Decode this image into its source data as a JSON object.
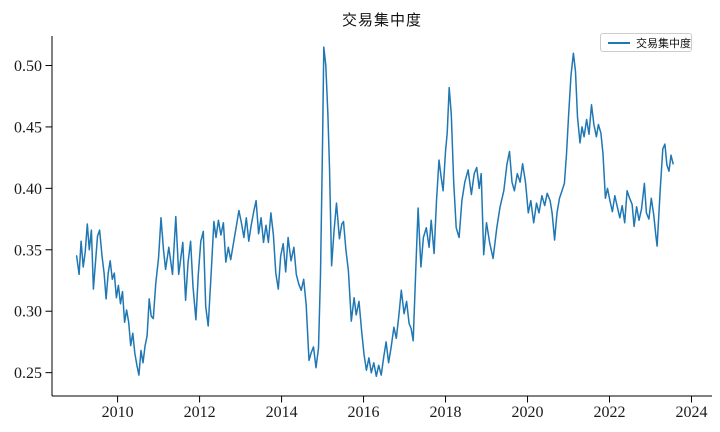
{
  "figure": {
    "title": "交易集中度",
    "background": "#ffffff",
    "text_color": "#1a1a1a",
    "axis_color": "#000000"
  },
  "legend": {
    "label": "交易集中度",
    "line_color": "#1f77b4",
    "position": "upper-right"
  },
  "chart_data": {
    "type": "line",
    "title": "交易集中度",
    "xlabel": "",
    "ylabel": "",
    "grid": false,
    "legend_position": "upper-right",
    "xlim": [
      2008.4,
      2024.5
    ],
    "ylim": [
      0.231,
      0.524
    ],
    "xticks": [
      2010,
      2012,
      2014,
      2016,
      2018,
      2020,
      2022,
      2024
    ],
    "yticks": [
      0.25,
      0.3,
      0.35,
      0.4,
      0.45,
      0.5
    ],
    "series": [
      {
        "name": "交易集中度",
        "color": "#1f77b4",
        "points": [
          [
            2009.0,
            0.345
          ],
          [
            2009.06,
            0.33
          ],
          [
            2009.11,
            0.357
          ],
          [
            2009.16,
            0.336
          ],
          [
            2009.21,
            0.348
          ],
          [
            2009.26,
            0.371
          ],
          [
            2009.31,
            0.35
          ],
          [
            2009.36,
            0.366
          ],
          [
            2009.41,
            0.318
          ],
          [
            2009.46,
            0.34
          ],
          [
            2009.51,
            0.361
          ],
          [
            2009.56,
            0.366
          ],
          [
            2009.62,
            0.345
          ],
          [
            2009.67,
            0.331
          ],
          [
            2009.72,
            0.31
          ],
          [
            2009.77,
            0.331
          ],
          [
            2009.82,
            0.341
          ],
          [
            2009.87,
            0.326
          ],
          [
            2009.92,
            0.331
          ],
          [
            2009.97,
            0.311
          ],
          [
            2010.02,
            0.321
          ],
          [
            2010.07,
            0.306
          ],
          [
            2010.12,
            0.316
          ],
          [
            2010.17,
            0.291
          ],
          [
            2010.22,
            0.301
          ],
          [
            2010.27,
            0.291
          ],
          [
            2010.32,
            0.272
          ],
          [
            2010.37,
            0.282
          ],
          [
            2010.42,
            0.266
          ],
          [
            2010.47,
            0.256
          ],
          [
            2010.52,
            0.248
          ],
          [
            2010.57,
            0.268
          ],
          [
            2010.62,
            0.258
          ],
          [
            2010.67,
            0.272
          ],
          [
            2010.72,
            0.28
          ],
          [
            2010.77,
            0.31
          ],
          [
            2010.82,
            0.296
          ],
          [
            2010.87,
            0.294
          ],
          [
            2010.93,
            0.322
          ],
          [
            2011.0,
            0.344
          ],
          [
            2011.06,
            0.376
          ],
          [
            2011.12,
            0.35
          ],
          [
            2011.17,
            0.334
          ],
          [
            2011.25,
            0.352
          ],
          [
            2011.34,
            0.33
          ],
          [
            2011.42,
            0.377
          ],
          [
            2011.49,
            0.33
          ],
          [
            2011.59,
            0.356
          ],
          [
            2011.66,
            0.309
          ],
          [
            2011.72,
            0.34
          ],
          [
            2011.78,
            0.357
          ],
          [
            2011.84,
            0.32
          ],
          [
            2011.91,
            0.293
          ],
          [
            2011.97,
            0.33
          ],
          [
            2012.03,
            0.357
          ],
          [
            2012.09,
            0.365
          ],
          [
            2012.15,
            0.304
          ],
          [
            2012.21,
            0.288
          ],
          [
            2012.28,
            0.33
          ],
          [
            2012.35,
            0.373
          ],
          [
            2012.4,
            0.36
          ],
          [
            2012.46,
            0.374
          ],
          [
            2012.52,
            0.362
          ],
          [
            2012.58,
            0.372
          ],
          [
            2012.64,
            0.34
          ],
          [
            2012.7,
            0.352
          ],
          [
            2012.76,
            0.342
          ],
          [
            2012.83,
            0.356
          ],
          [
            2012.9,
            0.37
          ],
          [
            2012.96,
            0.382
          ],
          [
            2013.02,
            0.372
          ],
          [
            2013.08,
            0.36
          ],
          [
            2013.14,
            0.376
          ],
          [
            2013.2,
            0.357
          ],
          [
            2013.26,
            0.37
          ],
          [
            2013.32,
            0.381
          ],
          [
            2013.38,
            0.39
          ],
          [
            2013.44,
            0.363
          ],
          [
            2013.5,
            0.376
          ],
          [
            2013.56,
            0.356
          ],
          [
            2013.62,
            0.37
          ],
          [
            2013.68,
            0.356
          ],
          [
            2013.74,
            0.38
          ],
          [
            2013.8,
            0.362
          ],
          [
            2013.86,
            0.331
          ],
          [
            2013.92,
            0.318
          ],
          [
            2013.98,
            0.345
          ],
          [
            2014.04,
            0.355
          ],
          [
            2014.1,
            0.332
          ],
          [
            2014.16,
            0.36
          ],
          [
            2014.23,
            0.341
          ],
          [
            2014.3,
            0.352
          ],
          [
            2014.36,
            0.33
          ],
          [
            2014.42,
            0.322
          ],
          [
            2014.48,
            0.317
          ],
          [
            2014.54,
            0.326
          ],
          [
            2014.6,
            0.305
          ],
          [
            2014.67,
            0.26
          ],
          [
            2014.72,
            0.266
          ],
          [
            2014.78,
            0.271
          ],
          [
            2014.84,
            0.254
          ],
          [
            2014.9,
            0.27
          ],
          [
            2014.95,
            0.33
          ],
          [
            2015.0,
            0.44
          ],
          [
            2015.03,
            0.515
          ],
          [
            2015.08,
            0.5
          ],
          [
            2015.13,
            0.46
          ],
          [
            2015.17,
            0.417
          ],
          [
            2015.22,
            0.337
          ],
          [
            2015.28,
            0.365
          ],
          [
            2015.34,
            0.388
          ],
          [
            2015.41,
            0.359
          ],
          [
            2015.47,
            0.371
          ],
          [
            2015.51,
            0.373
          ],
          [
            2015.57,
            0.35
          ],
          [
            2015.63,
            0.333
          ],
          [
            2015.7,
            0.292
          ],
          [
            2015.77,
            0.311
          ],
          [
            2015.82,
            0.297
          ],
          [
            2015.89,
            0.308
          ],
          [
            2015.95,
            0.285
          ],
          [
            2016.01,
            0.265
          ],
          [
            2016.07,
            0.252
          ],
          [
            2016.13,
            0.262
          ],
          [
            2016.19,
            0.25
          ],
          [
            2016.25,
            0.258
          ],
          [
            2016.31,
            0.247
          ],
          [
            2016.37,
            0.256
          ],
          [
            2016.43,
            0.248
          ],
          [
            2016.49,
            0.262
          ],
          [
            2016.55,
            0.275
          ],
          [
            2016.61,
            0.258
          ],
          [
            2016.67,
            0.27
          ],
          [
            2016.74,
            0.287
          ],
          [
            2016.8,
            0.278
          ],
          [
            2016.86,
            0.296
          ],
          [
            2016.92,
            0.317
          ],
          [
            2016.99,
            0.298
          ],
          [
            2017.05,
            0.308
          ],
          [
            2017.11,
            0.29
          ],
          [
            2017.16,
            0.286
          ],
          [
            2017.21,
            0.276
          ],
          [
            2017.27,
            0.33
          ],
          [
            2017.33,
            0.384
          ],
          [
            2017.4,
            0.336
          ],
          [
            2017.46,
            0.36
          ],
          [
            2017.53,
            0.368
          ],
          [
            2017.6,
            0.352
          ],
          [
            2017.65,
            0.374
          ],
          [
            2017.72,
            0.347
          ],
          [
            2017.78,
            0.39
          ],
          [
            2017.84,
            0.423
          ],
          [
            2017.89,
            0.41
          ],
          [
            2017.94,
            0.398
          ],
          [
            2018.0,
            0.43
          ],
          [
            2018.04,
            0.445
          ],
          [
            2018.09,
            0.482
          ],
          [
            2018.14,
            0.46
          ],
          [
            2018.2,
            0.405
          ],
          [
            2018.26,
            0.368
          ],
          [
            2018.33,
            0.36
          ],
          [
            2018.4,
            0.39
          ],
          [
            2018.47,
            0.405
          ],
          [
            2018.55,
            0.415
          ],
          [
            2018.63,
            0.395
          ],
          [
            2018.7,
            0.412
          ],
          [
            2018.76,
            0.417
          ],
          [
            2018.82,
            0.4
          ],
          [
            2018.87,
            0.412
          ],
          [
            2018.93,
            0.346
          ],
          [
            2019.0,
            0.372
          ],
          [
            2019.08,
            0.355
          ],
          [
            2019.16,
            0.343
          ],
          [
            2019.25,
            0.368
          ],
          [
            2019.33,
            0.385
          ],
          [
            2019.42,
            0.398
          ],
          [
            2019.5,
            0.42
          ],
          [
            2019.56,
            0.43
          ],
          [
            2019.62,
            0.405
          ],
          [
            2019.68,
            0.398
          ],
          [
            2019.75,
            0.412
          ],
          [
            2019.82,
            0.405
          ],
          [
            2019.88,
            0.42
          ],
          [
            2019.95,
            0.405
          ],
          [
            2020.02,
            0.38
          ],
          [
            2020.08,
            0.39
          ],
          [
            2020.15,
            0.372
          ],
          [
            2020.22,
            0.388
          ],
          [
            2020.28,
            0.38
          ],
          [
            2020.35,
            0.394
          ],
          [
            2020.42,
            0.386
          ],
          [
            2020.48,
            0.396
          ],
          [
            2020.55,
            0.39
          ],
          [
            2020.6,
            0.38
          ],
          [
            2020.66,
            0.358
          ],
          [
            2020.72,
            0.38
          ],
          [
            2020.78,
            0.392
          ],
          [
            2020.84,
            0.398
          ],
          [
            2020.9,
            0.404
          ],
          [
            2020.95,
            0.428
          ],
          [
            2021.0,
            0.458
          ],
          [
            2021.06,
            0.492
          ],
          [
            2021.12,
            0.51
          ],
          [
            2021.17,
            0.495
          ],
          [
            2021.22,
            0.458
          ],
          [
            2021.28,
            0.437
          ],
          [
            2021.33,
            0.45
          ],
          [
            2021.38,
            0.442
          ],
          [
            2021.44,
            0.456
          ],
          [
            2021.5,
            0.444
          ],
          [
            2021.56,
            0.468
          ],
          [
            2021.62,
            0.452
          ],
          [
            2021.68,
            0.442
          ],
          [
            2021.73,
            0.452
          ],
          [
            2021.79,
            0.445
          ],
          [
            2021.84,
            0.428
          ],
          [
            2021.9,
            0.392
          ],
          [
            2021.95,
            0.4
          ],
          [
            2022.01,
            0.39
          ],
          [
            2022.07,
            0.381
          ],
          [
            2022.13,
            0.394
          ],
          [
            2022.19,
            0.385
          ],
          [
            2022.25,
            0.376
          ],
          [
            2022.31,
            0.386
          ],
          [
            2022.37,
            0.372
          ],
          [
            2022.43,
            0.398
          ],
          [
            2022.49,
            0.392
          ],
          [
            2022.55,
            0.387
          ],
          [
            2022.6,
            0.369
          ],
          [
            2022.66,
            0.385
          ],
          [
            2022.72,
            0.374
          ],
          [
            2022.78,
            0.383
          ],
          [
            2022.85,
            0.404
          ],
          [
            2022.9,
            0.38
          ],
          [
            2022.96,
            0.375
          ],
          [
            2023.02,
            0.392
          ],
          [
            2023.08,
            0.378
          ],
          [
            2023.13,
            0.362
          ],
          [
            2023.16,
            0.353
          ],
          [
            2023.24,
            0.4
          ],
          [
            2023.3,
            0.432
          ],
          [
            2023.35,
            0.436
          ],
          [
            2023.4,
            0.419
          ],
          [
            2023.45,
            0.414
          ],
          [
            2023.5,
            0.427
          ],
          [
            2023.55,
            0.42
          ]
        ]
      }
    ]
  }
}
